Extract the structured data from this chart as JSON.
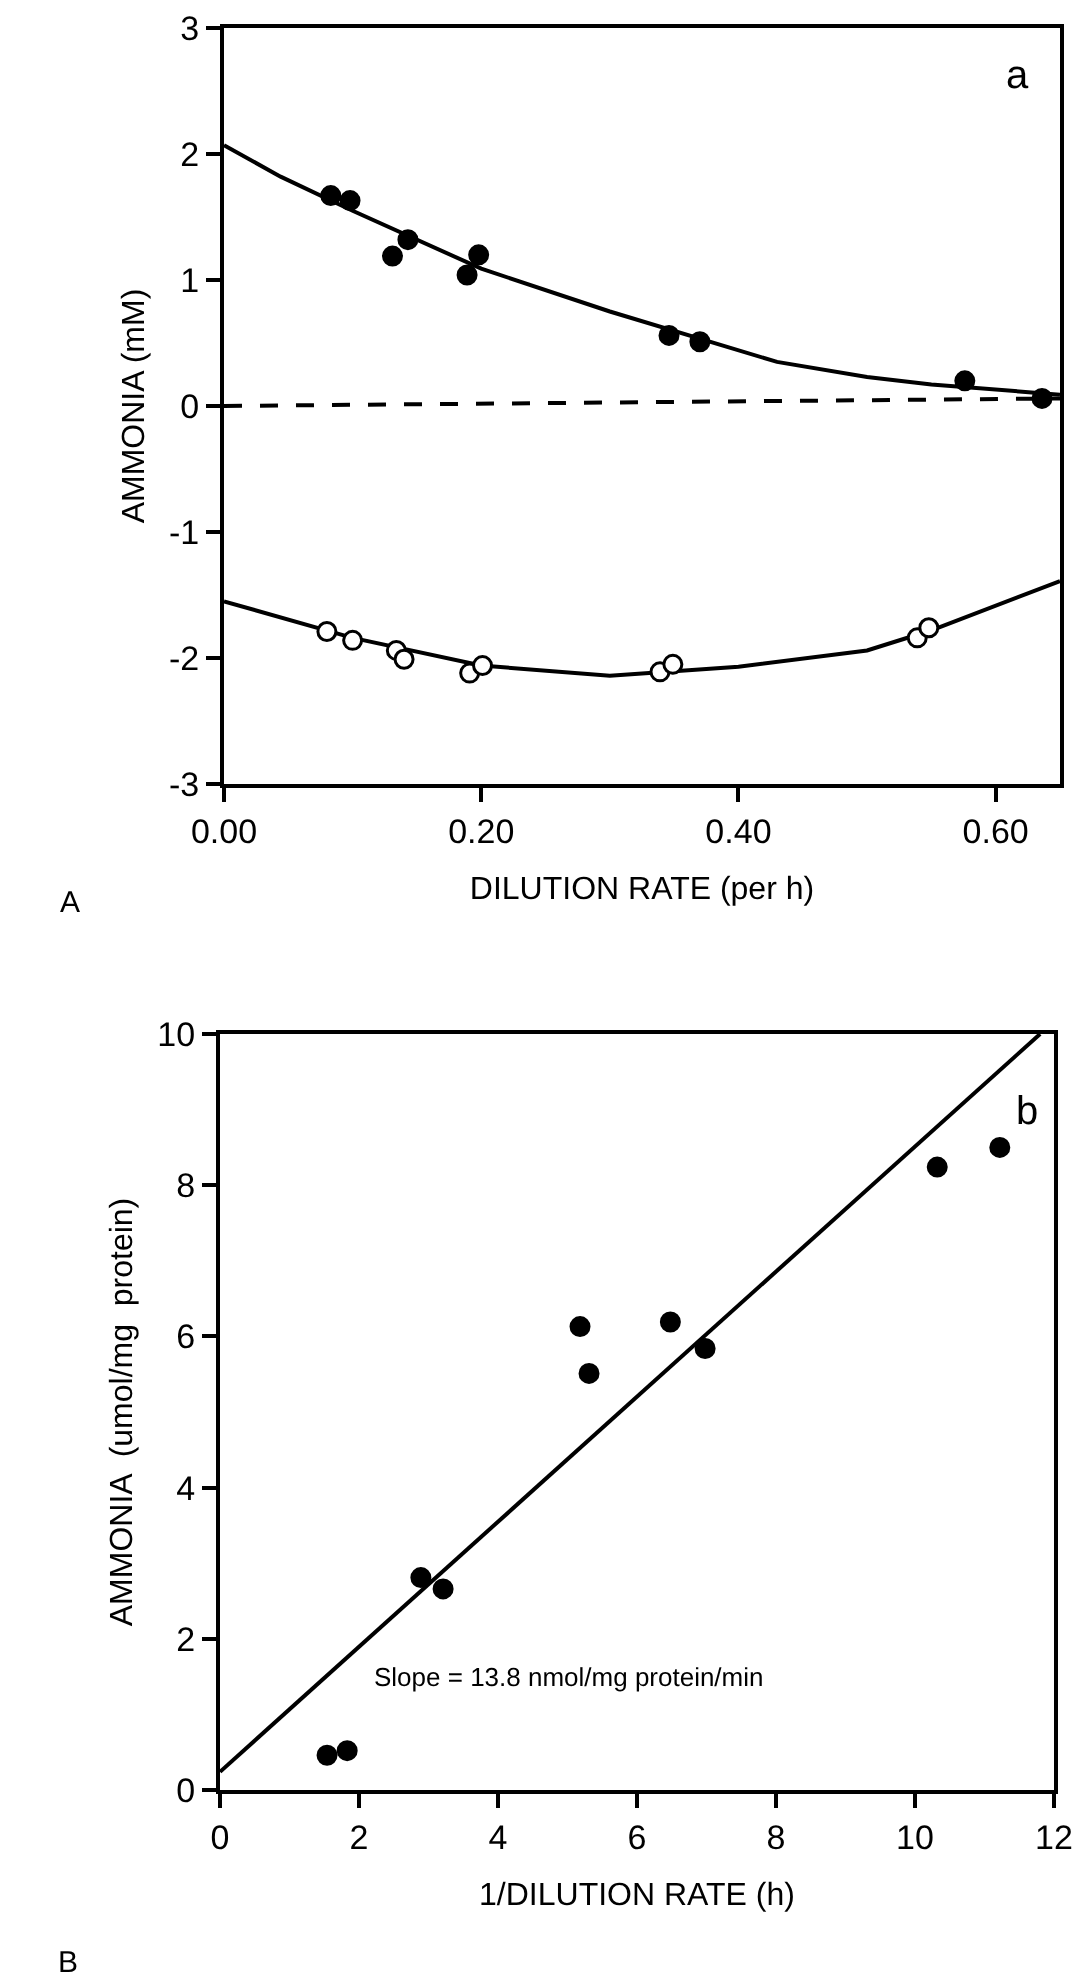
{
  "chart_data": [
    {
      "type": "scatter",
      "xlabel": "DILUTION RATE (per h)",
      "ylabel": "AMMONIA (mM)",
      "xlim": [
        0,
        0.65
      ],
      "ylim": [
        -3,
        3
      ],
      "xticks": [
        {
          "value": 0,
          "label": "0.00"
        },
        {
          "value": 0.2,
          "label": "0.20"
        },
        {
          "value": 0.4,
          "label": "0.40"
        },
        {
          "value": 0.6,
          "label": "0.60"
        }
      ],
      "yticks": [
        -3,
        -2,
        -1,
        0,
        1,
        2,
        3
      ],
      "grid": false,
      "marker": "circle",
      "annotations": [
        "a",
        "A"
      ],
      "series": [
        {
          "type": "scatter",
          "color": "#000000",
          "x": [
            0.083,
            0.098,
            0.131,
            0.143,
            0.189,
            0.198,
            0.346,
            0.37,
            0.576,
            0.636
          ],
          "values": [
            1.67,
            1.63,
            1.19,
            1.32,
            1.04,
            1.2,
            0.56,
            0.51,
            0.2,
            0.06
          ]
        },
        {
          "type": "line",
          "color": "#000000",
          "line_style": "solid",
          "marker": "none",
          "x": [
            0,
            0.044,
            0.1,
            0.2,
            0.3,
            0.43,
            0.5,
            0.55,
            0.65
          ],
          "values": [
            2.07,
            1.82,
            1.55,
            1.09,
            0.75,
            0.35,
            0.23,
            0.17,
            0.09
          ]
        },
        {
          "type": "scatter",
          "color": "#ffffff",
          "x": [
            0.08,
            0.1,
            0.134,
            0.14,
            0.191,
            0.201,
            0.339,
            0.349,
            0.539,
            0.548
          ],
          "values": [
            -1.79,
            -1.86,
            -1.94,
            -2.01,
            -2.12,
            -2.06,
            -2.11,
            -2.05,
            -1.84,
            -1.76
          ]
        },
        {
          "type": "line",
          "color": "#000000",
          "line_style": "solid",
          "marker": "none",
          "x": [
            0,
            0.1,
            0.2,
            0.3,
            0.4,
            0.5,
            0.55,
            0.65
          ],
          "values": [
            -1.55,
            -1.84,
            -2.06,
            -2.14,
            -2.07,
            -1.94,
            -1.78,
            -1.39
          ]
        },
        {
          "type": "line",
          "color": "#000000",
          "line_style": "dashed",
          "marker": "none",
          "x": [
            0,
            0.65
          ],
          "values": [
            0,
            0.06
          ]
        }
      ]
    },
    {
      "type": "scatter",
      "xlabel": "1/DILUTION RATE (h)",
      "ylabel": "AMMONIA  (umol/mg  protein)",
      "xlim": [
        0,
        12
      ],
      "ylim": [
        0,
        10
      ],
      "xticks": [
        0,
        2,
        4,
        6,
        8,
        10,
        12
      ],
      "yticks": [
        0,
        2,
        4,
        6,
        8,
        10
      ],
      "grid": false,
      "marker": "circle",
      "annotations": [
        "b",
        "Slope = 13.8 nmol/mg protein/min",
        "B"
      ],
      "series": [
        {
          "type": "scatter",
          "color": "#000000",
          "x": [
            1.54,
            1.83,
            2.89,
            3.21,
            5.18,
            5.31,
            6.48,
            6.98,
            10.32,
            11.22
          ],
          "values": [
            0.46,
            0.52,
            2.81,
            2.66,
            6.13,
            5.51,
            6.19,
            5.84,
            8.24,
            8.5
          ]
        },
        {
          "type": "line",
          "color": "#000000",
          "line_style": "solid",
          "marker": "none",
          "x": [
            0,
            11.8
          ],
          "values": [
            0.24,
            10.0
          ]
        }
      ]
    }
  ]
}
